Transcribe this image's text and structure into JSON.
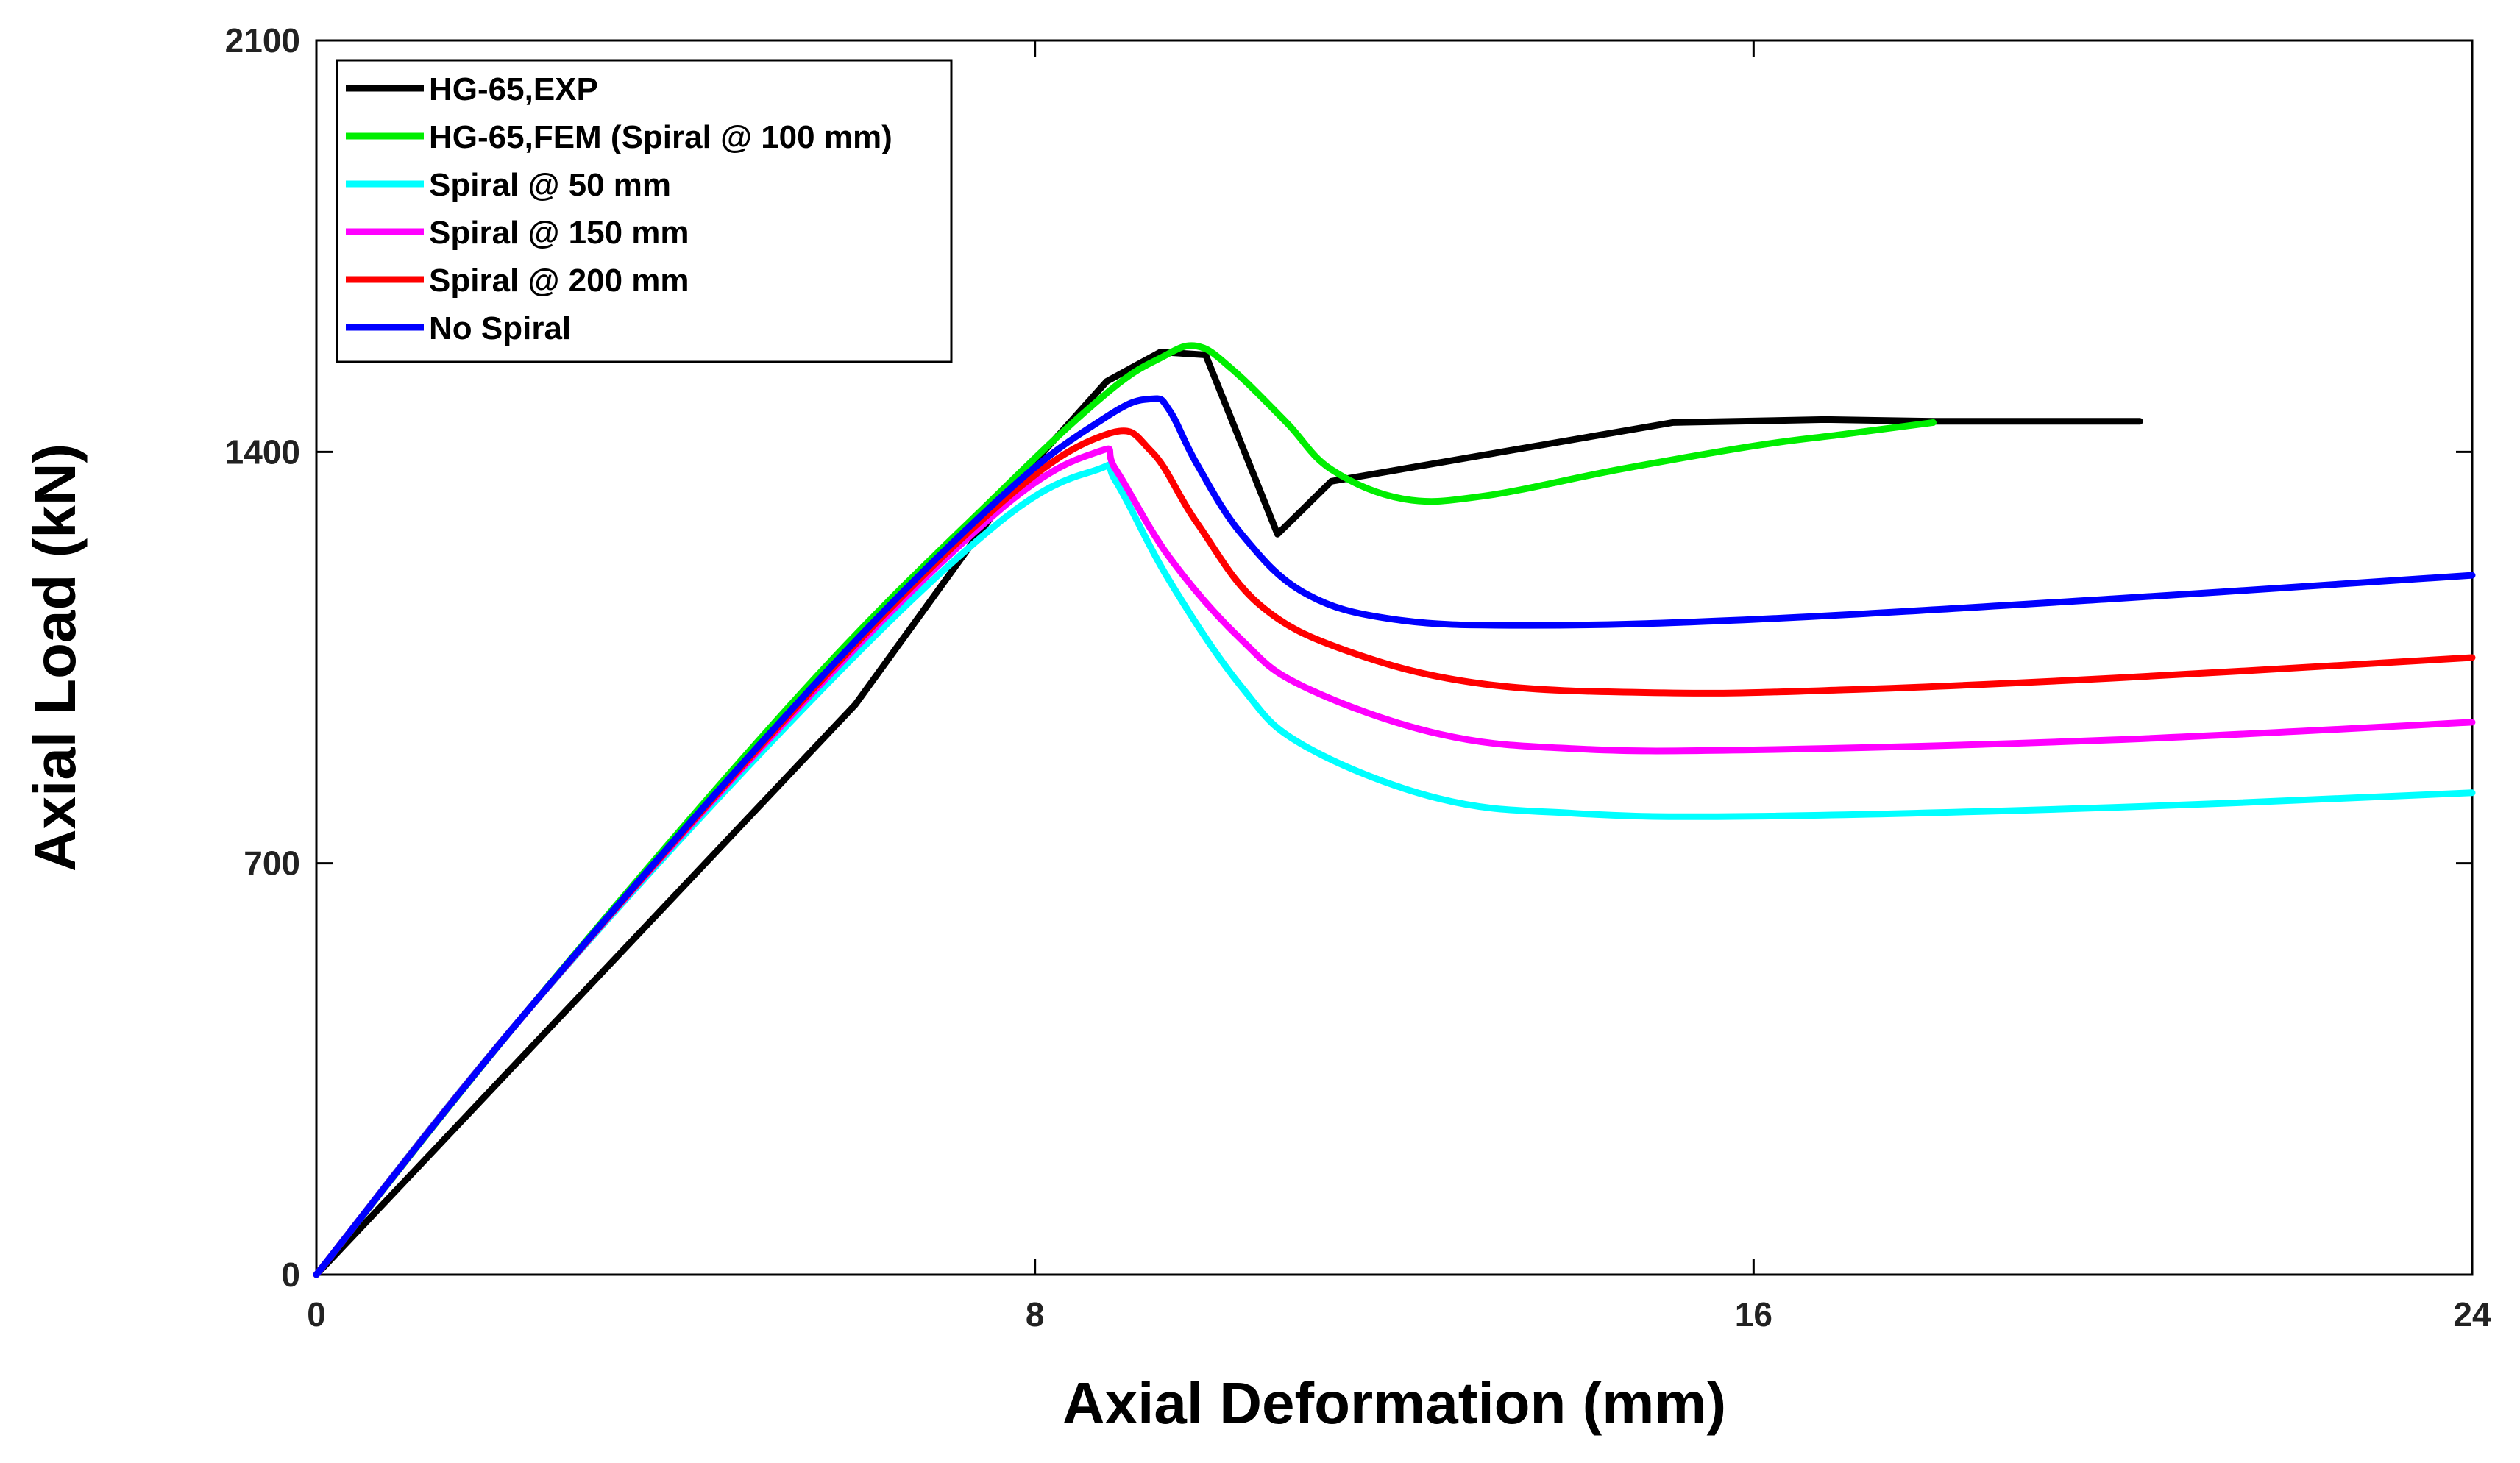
{
  "chart_data": {
    "type": "line",
    "title": "",
    "xlabel": "Axial Deformation (mm)",
    "ylabel": "Axial Load (kN)",
    "xlim": [
      0,
      24
    ],
    "ylim": [
      0,
      2100
    ],
    "xticks": [
      0,
      8,
      16,
      24
    ],
    "yticks": [
      0,
      700,
      1400,
      2100
    ],
    "xtick_labels": [
      "0",
      "8",
      "16",
      "24"
    ],
    "ytick_labels": [
      "0",
      "700",
      "1400",
      "2100"
    ],
    "grid": false,
    "legend_position": "top-left",
    "series": [
      {
        "name": "HG-65,EXP",
        "color": "#000000",
        "x": [
          0,
          6,
          7.8,
          8.8,
          9.4,
          9.9,
          10.7,
          11.3,
          15.1,
          16.8,
          18,
          20.3
        ],
        "y": [
          0,
          970,
          1350,
          1520,
          1570,
          1565,
          1260,
          1350,
          1450,
          1455,
          1452,
          1452
        ]
      },
      {
        "name": "HG-65,FEM (Spiral @ 100 mm)",
        "color": "#00ee00",
        "x": [
          0,
          2.3,
          5.4,
          7.6,
          8.8,
          9.4,
          9.8,
          10.2,
          10.8,
          11.3,
          12.1,
          13,
          14.5,
          16,
          17,
          18
        ],
        "y": [
          0,
          440,
          990,
          1330,
          1500,
          1560,
          1580,
          1540,
          1450,
          1370,
          1320,
          1325,
          1370,
          1410,
          1430,
          1450
        ]
      },
      {
        "name": "Spiral @ 50 mm",
        "color": "#00ffff",
        "x": [
          0,
          2.3,
          5.4,
          7.6,
          8.7,
          8.9,
          9.5,
          10.3,
          11,
          12.5,
          14,
          16,
          20,
          24
        ],
        "y": [
          0,
          440,
          960,
          1280,
          1370,
          1350,
          1180,
          1000,
          900,
          810,
          785,
          780,
          795,
          820
        ]
      },
      {
        "name": "Spiral @ 150 mm",
        "color": "#ff00ff",
        "x": [
          0,
          2.3,
          5.4,
          7.6,
          8.7,
          8.9,
          9.5,
          10.3,
          11,
          12.5,
          14,
          16,
          20,
          24
        ],
        "y": [
          0,
          440,
          970,
          1300,
          1400,
          1370,
          1220,
          1080,
          1000,
          920,
          895,
          893,
          910,
          940
        ]
      },
      {
        "name": "Spiral @ 200 mm",
        "color": "#ff0000",
        "x": [
          0,
          2.3,
          5.4,
          7.6,
          8.8,
          9.3,
          9.8,
          10.5,
          11.5,
          13,
          15,
          17,
          20,
          24
        ],
        "y": [
          0,
          440,
          975,
          1310,
          1430,
          1400,
          1280,
          1140,
          1060,
          1005,
          990,
          995,
          1015,
          1050
        ]
      },
      {
        "name": "No Spiral",
        "color": "#0000ff",
        "x": [
          0,
          2.3,
          5.4,
          7.6,
          8.8,
          9.3,
          9.5,
          9.8,
          10.3,
          11,
          12,
          13.5,
          16,
          20,
          24
        ],
        "y": [
          0,
          440,
          980,
          1320,
          1460,
          1490,
          1470,
          1380,
          1260,
          1160,
          1115,
          1105,
          1115,
          1150,
          1190
        ]
      }
    ]
  }
}
